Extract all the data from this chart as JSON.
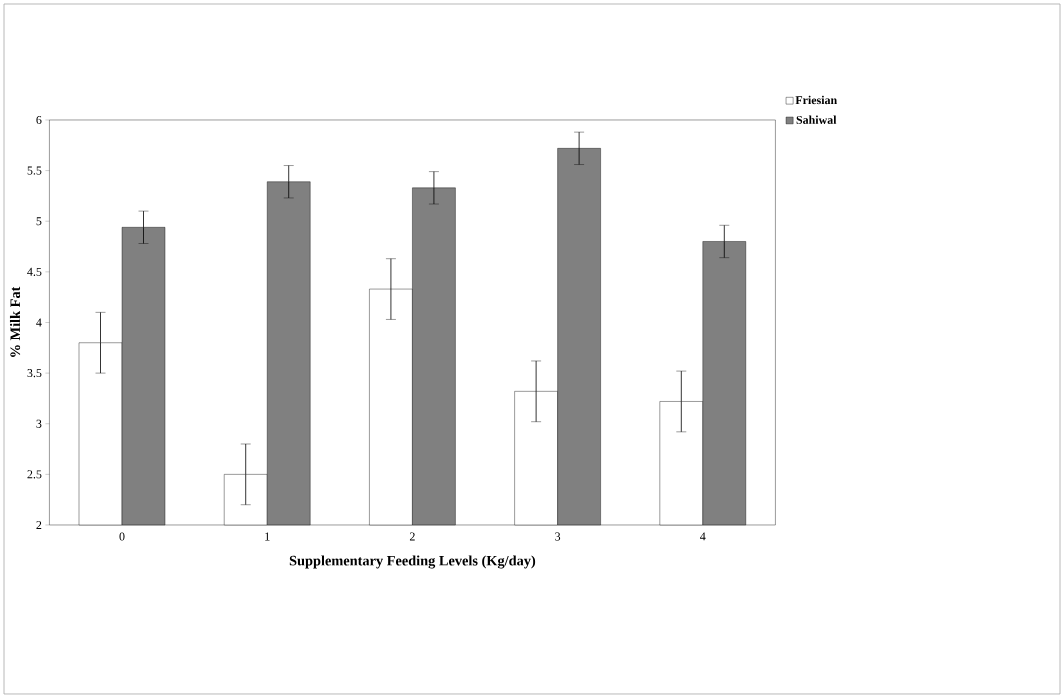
{
  "chart_data": {
    "type": "bar",
    "xlabel": "Supplementary Feeding Levels (Kg/day)",
    "ylabel": "%   Milk Fat",
    "categories": [
      "0",
      "1",
      "2",
      "3",
      "4"
    ],
    "series": [
      {
        "name": "Friesian",
        "color": "#ffffff",
        "values": [
          3.8,
          2.5,
          4.33,
          3.32,
          3.22
        ],
        "errors": [
          0.3,
          0.3,
          0.3,
          0.3,
          0.3
        ]
      },
      {
        "name": "Sahiwal",
        "color": "#808080",
        "values": [
          4.94,
          5.39,
          5.33,
          5.72,
          4.8
        ],
        "errors": [
          0.16,
          0.16,
          0.16,
          0.16,
          0.16
        ]
      }
    ],
    "ylim": [
      2,
      6
    ],
    "yticks": [
      2,
      2.5,
      3,
      3.5,
      4,
      4.5,
      5,
      5.5,
      6
    ],
    "legend": "top right",
    "grid": false
  }
}
